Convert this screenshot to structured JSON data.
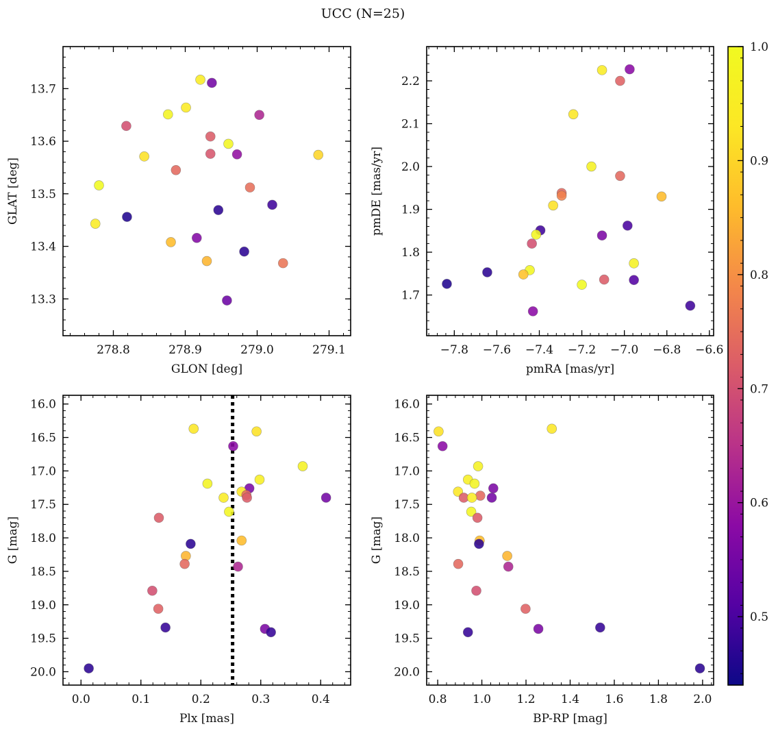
{
  "title": "UCC (N=25)",
  "colorbar": {
    "range": [
      0.44,
      1.0
    ],
    "ticks": [
      "0.5",
      "0.6",
      "0.7",
      "0.8",
      "0.9",
      "1.0"
    ],
    "tick_values": [
      0.5,
      0.6,
      0.7,
      0.8,
      0.9,
      1.0
    ],
    "colormap": "plasma"
  },
  "chart_data": [
    {
      "type": "scatter",
      "xlabel": "GLON [deg]",
      "ylabel": "GLAT [deg]",
      "xlim": [
        278.73,
        279.13
      ],
      "ylim": [
        13.23,
        13.78
      ],
      "xticks": [
        "278.8",
        "278.9",
        "279.0",
        "279.1"
      ],
      "xtick_values": [
        278.8,
        278.9,
        279.0,
        279.1
      ],
      "yticks": [
        "13.3",
        "13.4",
        "13.5",
        "13.6",
        "13.7"
      ],
      "ytick_values": [
        13.3,
        13.4,
        13.5,
        13.6,
        13.7
      ],
      "invert_y": false,
      "points": [
        {
          "x": 278.921,
          "y": 13.717,
          "c": 0.95
        },
        {
          "x": 278.937,
          "y": 13.711,
          "c": 0.55
        },
        {
          "x": 278.901,
          "y": 13.664,
          "c": 0.94
        },
        {
          "x": 278.876,
          "y": 13.651,
          "c": 0.98
        },
        {
          "x": 279.003,
          "y": 13.65,
          "c": 0.63
        },
        {
          "x": 278.818,
          "y": 13.629,
          "c": 0.7
        },
        {
          "x": 278.935,
          "y": 13.609,
          "c": 0.72
        },
        {
          "x": 278.96,
          "y": 13.595,
          "c": 0.99
        },
        {
          "x": 278.935,
          "y": 13.576,
          "c": 0.71
        },
        {
          "x": 278.972,
          "y": 13.575,
          "c": 0.59
        },
        {
          "x": 279.085,
          "y": 13.574,
          "c": 0.9
        },
        {
          "x": 278.843,
          "y": 13.571,
          "c": 0.92
        },
        {
          "x": 278.887,
          "y": 13.545,
          "c": 0.74
        },
        {
          "x": 278.78,
          "y": 13.516,
          "c": 1.0
        },
        {
          "x": 278.99,
          "y": 13.512,
          "c": 0.75
        },
        {
          "x": 279.021,
          "y": 13.479,
          "c": 0.49
        },
        {
          "x": 278.946,
          "y": 13.469,
          "c": 0.47
        },
        {
          "x": 278.819,
          "y": 13.456,
          "c": 0.46
        },
        {
          "x": 278.775,
          "y": 13.443,
          "c": 0.95
        },
        {
          "x": 278.916,
          "y": 13.416,
          "c": 0.57
        },
        {
          "x": 278.88,
          "y": 13.408,
          "c": 0.86
        },
        {
          "x": 278.982,
          "y": 13.39,
          "c": 0.47
        },
        {
          "x": 278.93,
          "y": 13.372,
          "c": 0.85
        },
        {
          "x": 279.036,
          "y": 13.368,
          "c": 0.76
        },
        {
          "x": 278.958,
          "y": 13.297,
          "c": 0.54
        }
      ]
    },
    {
      "type": "scatter",
      "xlabel": "pmRA [mas/yr]",
      "ylabel": "pmDE [mas/yr]",
      "xlim": [
        -7.93,
        -6.58
      ],
      "ylim": [
        1.605,
        2.28
      ],
      "xticks": [
        "−7.8",
        "−7.6",
        "−7.4",
        "−7.2",
        "−7.0",
        "−6.8",
        "−6.6"
      ],
      "xtick_values": [
        -7.8,
        -7.6,
        -7.4,
        -7.2,
        -7.0,
        -6.8,
        -6.6
      ],
      "yticks": [
        "1.7",
        "1.8",
        "1.9",
        "2.0",
        "2.1",
        "2.2"
      ],
      "ytick_values": [
        1.7,
        1.8,
        1.9,
        2.0,
        2.1,
        2.2
      ],
      "invert_y": false,
      "points": [
        {
          "x": -7.105,
          "y": 2.225,
          "c": 0.95
        },
        {
          "x": -6.975,
          "y": 2.227,
          "c": 0.58
        },
        {
          "x": -7.02,
          "y": 2.2,
          "c": 0.73
        },
        {
          "x": -7.24,
          "y": 2.122,
          "c": 0.93
        },
        {
          "x": -7.155,
          "y": 2.0,
          "c": 0.97
        },
        {
          "x": -7.02,
          "y": 1.978,
          "c": 0.74
        },
        {
          "x": -7.295,
          "y": 1.938,
          "c": 0.74
        },
        {
          "x": -7.295,
          "y": 1.932,
          "c": 0.78
        },
        {
          "x": -6.825,
          "y": 1.93,
          "c": 0.86
        },
        {
          "x": -7.335,
          "y": 1.909,
          "c": 0.92
        },
        {
          "x": -6.985,
          "y": 1.862,
          "c": 0.5
        },
        {
          "x": -7.395,
          "y": 1.851,
          "c": 0.49
        },
        {
          "x": -7.415,
          "y": 1.841,
          "c": 0.99
        },
        {
          "x": -7.105,
          "y": 1.839,
          "c": 0.56
        },
        {
          "x": -7.435,
          "y": 1.82,
          "c": 0.7
        },
        {
          "x": -6.955,
          "y": 1.774,
          "c": 0.97
        },
        {
          "x": -7.445,
          "y": 1.758,
          "c": 0.99
        },
        {
          "x": -7.645,
          "y": 1.753,
          "c": 0.47
        },
        {
          "x": -7.475,
          "y": 1.748,
          "c": 0.87
        },
        {
          "x": -7.095,
          "y": 1.736,
          "c": 0.72
        },
        {
          "x": -6.955,
          "y": 1.735,
          "c": 0.51
        },
        {
          "x": -7.835,
          "y": 1.726,
          "c": 0.46
        },
        {
          "x": -7.2,
          "y": 1.724,
          "c": 1.0
        },
        {
          "x": -6.69,
          "y": 1.675,
          "c": 0.49
        },
        {
          "x": -7.43,
          "y": 1.662,
          "c": 0.58
        }
      ]
    },
    {
      "type": "scatter",
      "xlabel": "Plx [mas]",
      "ylabel": "G [mag]",
      "xlim": [
        -0.03,
        0.45
      ],
      "ylim": [
        15.87,
        20.2
      ],
      "xticks": [
        "0.0",
        "0.1",
        "0.2",
        "0.3",
        "0.4"
      ],
      "xtick_values": [
        0.0,
        0.1,
        0.2,
        0.3,
        0.4
      ],
      "yticks": [
        "16.0",
        "16.5",
        "17.0",
        "17.5",
        "18.0",
        "18.5",
        "19.0",
        "19.5",
        "20.0"
      ],
      "ytick_values": [
        16.0,
        16.5,
        17.0,
        17.5,
        18.0,
        18.5,
        19.0,
        19.5,
        20.0
      ],
      "invert_y": true,
      "vline": 0.253,
      "points": [
        {
          "x": 0.188,
          "y": 16.37,
          "c": 0.93
        },
        {
          "x": 0.293,
          "y": 16.41,
          "c": 0.92
        },
        {
          "x": 0.254,
          "y": 16.63,
          "c": 0.58
        },
        {
          "x": 0.37,
          "y": 16.93,
          "c": 0.97
        },
        {
          "x": 0.298,
          "y": 17.13,
          "c": 0.96
        },
        {
          "x": 0.211,
          "y": 17.19,
          "c": 0.98
        },
        {
          "x": 0.281,
          "y": 17.26,
          "c": 0.56
        },
        {
          "x": 0.268,
          "y": 17.31,
          "c": 0.93
        },
        {
          "x": 0.276,
          "y": 17.36,
          "c": 0.74
        },
        {
          "x": 0.277,
          "y": 17.4,
          "c": 0.72
        },
        {
          "x": 0.238,
          "y": 17.4,
          "c": 0.95
        },
        {
          "x": 0.409,
          "y": 17.4,
          "c": 0.55
        },
        {
          "x": 0.247,
          "y": 17.61,
          "c": 0.99
        },
        {
          "x": 0.13,
          "y": 17.7,
          "c": 0.72
        },
        {
          "x": 0.268,
          "y": 18.04,
          "c": 0.86
        },
        {
          "x": 0.183,
          "y": 18.09,
          "c": 0.47
        },
        {
          "x": 0.175,
          "y": 18.27,
          "c": 0.85
        },
        {
          "x": 0.173,
          "y": 18.39,
          "c": 0.74
        },
        {
          "x": 0.262,
          "y": 18.43,
          "c": 0.63
        },
        {
          "x": 0.119,
          "y": 18.79,
          "c": 0.7
        },
        {
          "x": 0.129,
          "y": 19.06,
          "c": 0.73
        },
        {
          "x": 0.141,
          "y": 19.34,
          "c": 0.48
        },
        {
          "x": 0.307,
          "y": 19.36,
          "c": 0.56
        },
        {
          "x": 0.317,
          "y": 19.41,
          "c": 0.48
        },
        {
          "x": 0.013,
          "y": 19.95,
          "c": 0.47
        }
      ]
    },
    {
      "type": "scatter",
      "xlabel": "BP-RP [mag]",
      "ylabel": "G [mag]",
      "xlim": [
        0.75,
        2.05
      ],
      "ylim": [
        15.87,
        20.2
      ],
      "xticks": [
        "0.8",
        "1.0",
        "1.2",
        "1.4",
        "1.6",
        "1.8",
        "2.0"
      ],
      "xtick_values": [
        0.8,
        1.0,
        1.2,
        1.4,
        1.6,
        1.8,
        2.0
      ],
      "yticks": [
        "16.0",
        "16.5",
        "17.0",
        "17.5",
        "18.0",
        "18.5",
        "19.0",
        "19.5",
        "20.0"
      ],
      "ytick_values": [
        16.0,
        16.5,
        17.0,
        17.5,
        18.0,
        18.5,
        19.0,
        19.5,
        20.0
      ],
      "invert_y": true,
      "points": [
        {
          "x": 0.804,
          "y": 16.41,
          "c": 0.92
        },
        {
          "x": 1.317,
          "y": 16.37,
          "c": 0.93
        },
        {
          "x": 0.822,
          "y": 16.63,
          "c": 0.58
        },
        {
          "x": 0.983,
          "y": 16.93,
          "c": 0.97
        },
        {
          "x": 0.937,
          "y": 17.13,
          "c": 0.96
        },
        {
          "x": 0.967,
          "y": 17.19,
          "c": 0.98
        },
        {
          "x": 1.052,
          "y": 17.26,
          "c": 0.56
        },
        {
          "x": 0.892,
          "y": 17.31,
          "c": 0.93
        },
        {
          "x": 0.993,
          "y": 17.37,
          "c": 0.74
        },
        {
          "x": 0.918,
          "y": 17.4,
          "c": 0.72
        },
        {
          "x": 0.955,
          "y": 17.4,
          "c": 0.95
        },
        {
          "x": 1.045,
          "y": 17.4,
          "c": 0.55
        },
        {
          "x": 0.952,
          "y": 17.61,
          "c": 0.99
        },
        {
          "x": 0.98,
          "y": 17.7,
          "c": 0.72
        },
        {
          "x": 0.99,
          "y": 18.04,
          "c": 0.86
        },
        {
          "x": 0.987,
          "y": 18.09,
          "c": 0.47
        },
        {
          "x": 1.115,
          "y": 18.27,
          "c": 0.85
        },
        {
          "x": 0.893,
          "y": 18.39,
          "c": 0.74
        },
        {
          "x": 1.12,
          "y": 18.43,
          "c": 0.63
        },
        {
          "x": 0.975,
          "y": 18.79,
          "c": 0.7
        },
        {
          "x": 1.198,
          "y": 19.06,
          "c": 0.73
        },
        {
          "x": 1.536,
          "y": 19.34,
          "c": 0.48
        },
        {
          "x": 1.256,
          "y": 19.36,
          "c": 0.56
        },
        {
          "x": 0.937,
          "y": 19.41,
          "c": 0.48
        },
        {
          "x": 1.988,
          "y": 19.95,
          "c": 0.47
        }
      ]
    }
  ]
}
